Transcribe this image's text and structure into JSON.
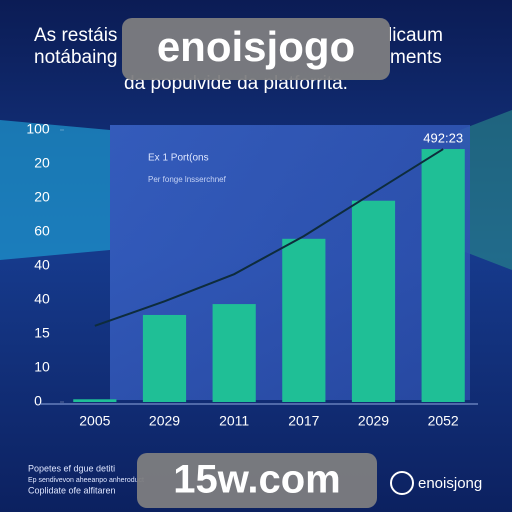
{
  "chart_data": {
    "type": "bar",
    "title_lines": [
      "As restáis",
      "licaum",
      "notábaing",
      "ments",
      "da populvide da platforrita."
    ],
    "categories": [
      "2005",
      "2029",
      "2011",
      "2017",
      "2029",
      "2052"
    ],
    "values": [
      1,
      32,
      36,
      60,
      74,
      93
    ],
    "color": "#1fbf96",
    "line_values": [
      28,
      37,
      47,
      61,
      77,
      93
    ],
    "line_color": "#0e2c3c",
    "annotation": "492:23",
    "ylim": [
      0,
      100
    ],
    "yticks": [
      0,
      100
    ],
    "y_axis_texts": [
      "20",
      "20",
      "60",
      "40",
      "40",
      "15",
      "10"
    ],
    "screen_texts": [
      "Ex 1 Port(ons",
      "Per fonge lnsserchnef"
    ]
  },
  "watermark": {
    "top": "enoisjogo",
    "bottom": "15w.com",
    "brand": "enoisjong"
  },
  "footnote_lines": [
    "Popetes ef dgue detiti",
    "Ep sendivevon aheeanpo anheroduct",
    "Coplidate ofe alfitaren"
  ]
}
